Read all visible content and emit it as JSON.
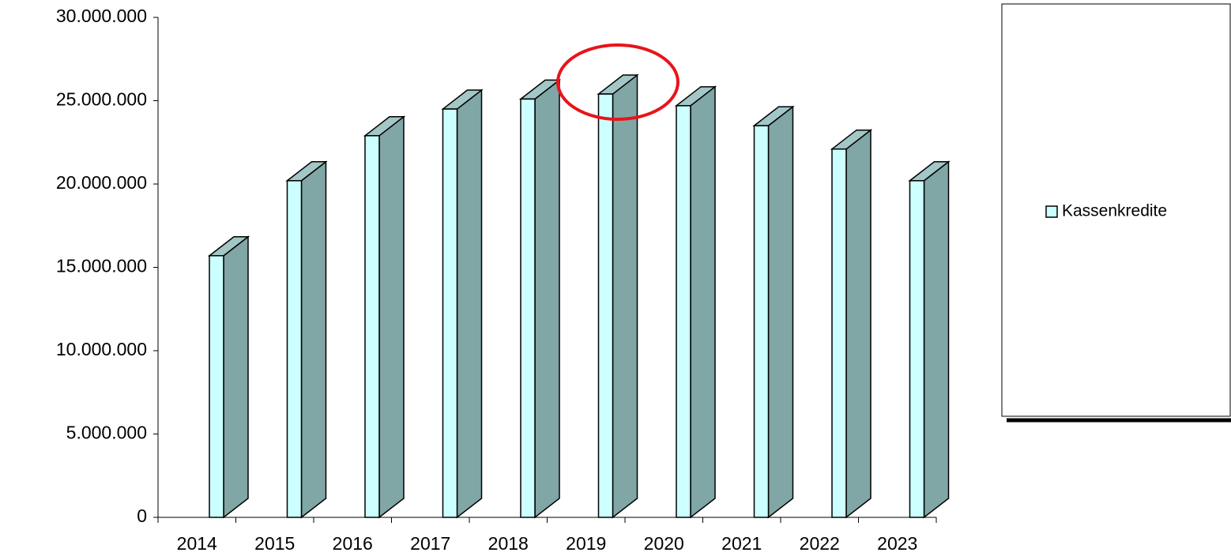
{
  "chart_data": {
    "type": "bar3d",
    "categories": [
      "2014",
      "2015",
      "2016",
      "2017",
      "2018",
      "2019",
      "2020",
      "2021",
      "2022",
      "2023"
    ],
    "series": [
      {
        "name": "Kassenkredite",
        "color": "#ccffff",
        "values": [
          15700000,
          20200000,
          22900000,
          24500000,
          25100000,
          25400000,
          24700000,
          23500000,
          22100000,
          20200000
        ]
      }
    ],
    "ylim": [
      0,
      30000000
    ],
    "yticks": [
      {
        "value": 0,
        "label": "0"
      },
      {
        "value": 5000000,
        "label": "5.000.000"
      },
      {
        "value": 10000000,
        "label": "10.000.000"
      },
      {
        "value": 15000000,
        "label": "15.000.000"
      },
      {
        "value": 20000000,
        "label": "20.000.000"
      },
      {
        "value": 25000000,
        "label": "25.000.000"
      },
      {
        "value": 30000000,
        "label": "30.000.000"
      }
    ],
    "legend": "right"
  }
}
